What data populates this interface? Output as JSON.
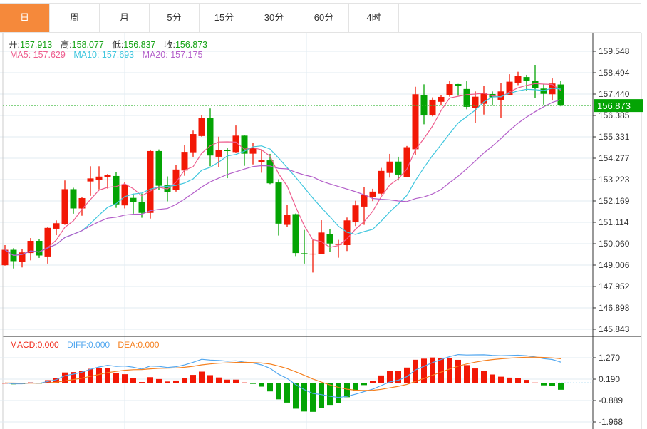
{
  "tabs": [
    "日",
    "周",
    "月",
    "5分",
    "15分",
    "30分",
    "60分",
    "4时"
  ],
  "active_tab": 0,
  "ohlc_header": {
    "open_label": "开:",
    "open": "157.913",
    "high_label": "高:",
    "high": "158.077",
    "low_label": "低:",
    "low": "156.837",
    "close_label": "收:",
    "close": "156.873"
  },
  "ma_header": {
    "ma5": "MA5: 157.629",
    "ma10": "MA10: 157.693",
    "ma20": "MA20: 157.175"
  },
  "macd_header": {
    "macd": "MACD:0.000",
    "diff": "DIFF:0.000",
    "dea": "DEA:0.000"
  },
  "colors": {
    "up": "#f21806",
    "down": "#04a404",
    "ma5": "#ee5d8e",
    "ma10": "#3fc6de",
    "ma20": "#b35ec9",
    "diff": "#52a7ef",
    "dea": "#f5801f",
    "accent": "#f5893b"
  },
  "chart_data": {
    "type": "candlestick",
    "price_axis_ticks": [
      "159.548",
      "158.494",
      "157.440",
      "156.385",
      "155.331",
      "154.277",
      "153.223",
      "152.169",
      "151.114",
      "150.060",
      "149.006",
      "147.952",
      "146.898",
      "145.843"
    ],
    "price_range": [
      145.843,
      159.548
    ],
    "current_price": "156.873",
    "macd_axis_ticks": [
      "1.270",
      "0.190",
      "-0.889",
      "-1.968"
    ],
    "macd_range": [
      -1.968,
      1.27
    ],
    "candles": [
      [
        149.0,
        149.99,
        148.98,
        149.76
      ],
      [
        149.76,
        149.84,
        148.84,
        149.2
      ],
      [
        149.16,
        149.8,
        148.89,
        149.63
      ],
      [
        149.6,
        150.34,
        149.24,
        150.2
      ],
      [
        150.2,
        150.28,
        149.36,
        149.48
      ],
      [
        149.43,
        150.89,
        149.08,
        150.84
      ],
      [
        150.8,
        151.21,
        150.48,
        151.07
      ],
      [
        151.03,
        153.18,
        150.99,
        152.75
      ],
      [
        152.75,
        152.82,
        151.54,
        151.8
      ],
      [
        151.8,
        152.38,
        151.44,
        152.31
      ],
      [
        153.13,
        153.88,
        152.42,
        153.28
      ],
      [
        153.2,
        153.88,
        152.74,
        153.37
      ],
      [
        153.33,
        153.5,
        152.78,
        153.44
      ],
      [
        153.4,
        153.6,
        151.83,
        152.0
      ],
      [
        151.95,
        153.08,
        151.8,
        152.98
      ],
      [
        152.32,
        152.53,
        151.54,
        152.1
      ],
      [
        152.12,
        152.53,
        151.34,
        151.58
      ],
      [
        151.58,
        154.7,
        151.3,
        154.63
      ],
      [
        154.63,
        154.71,
        152.71,
        152.92
      ],
      [
        152.94,
        153.38,
        152.15,
        152.59
      ],
      [
        152.72,
        153.96,
        152.63,
        153.72
      ],
      [
        153.67,
        154.93,
        153.41,
        154.59
      ],
      [
        154.57,
        155.64,
        154.35,
        155.47
      ],
      [
        155.37,
        156.42,
        155.34,
        156.25
      ],
      [
        156.25,
        156.73,
        153.88,
        154.41
      ],
      [
        154.35,
        155.34,
        153.84,
        154.67
      ],
      [
        154.67,
        154.8,
        153.29,
        154.63
      ],
      [
        154.58,
        155.89,
        154.56,
        155.39
      ],
      [
        155.39,
        155.4,
        153.9,
        154.5
      ],
      [
        154.5,
        155.02,
        153.97,
        154.78
      ],
      [
        154.07,
        154.7,
        153.56,
        154.17
      ],
      [
        154.17,
        154.49,
        153.0,
        153.04
      ],
      [
        153.08,
        153.24,
        150.46,
        151.05
      ],
      [
        150.99,
        151.97,
        150.87,
        151.5
      ],
      [
        151.52,
        151.55,
        149.45,
        149.6
      ],
      [
        149.59,
        150.74,
        149.08,
        149.55
      ],
      [
        149.55,
        150.25,
        148.64,
        149.57
      ],
      [
        149.55,
        151.22,
        149.55,
        150.61
      ],
      [
        150.52,
        150.78,
        149.66,
        150.07
      ],
      [
        150.0,
        150.25,
        149.37,
        150.05
      ],
      [
        149.99,
        151.35,
        149.7,
        151.21
      ],
      [
        151.13,
        152.18,
        150.93,
        151.95
      ],
      [
        151.89,
        152.85,
        150.99,
        152.45
      ],
      [
        152.36,
        152.77,
        152.16,
        152.63
      ],
      [
        152.53,
        153.8,
        152.47,
        153.65
      ],
      [
        153.55,
        154.49,
        153.32,
        154.11
      ],
      [
        154.11,
        154.35,
        153.18,
        153.47
      ],
      [
        153.35,
        154.88,
        153.33,
        154.82
      ],
      [
        154.72,
        157.8,
        154.44,
        157.43
      ],
      [
        157.39,
        157.92,
        155.95,
        156.42
      ],
      [
        156.4,
        157.28,
        156.34,
        157.16
      ],
      [
        157.06,
        157.39,
        156.87,
        157.3
      ],
      [
        157.37,
        158.1,
        157.31,
        157.93
      ],
      [
        157.93,
        157.94,
        157.36,
        157.84
      ],
      [
        157.69,
        158.07,
        156.69,
        156.81
      ],
      [
        156.77,
        157.57,
        156.02,
        157.31
      ],
      [
        156.96,
        157.86,
        156.43,
        157.51
      ],
      [
        157.44,
        157.57,
        156.87,
        157.28
      ],
      [
        157.16,
        157.98,
        156.25,
        157.57
      ],
      [
        157.39,
        158.42,
        157.37,
        158.05
      ],
      [
        158.0,
        158.54,
        157.88,
        158.34
      ],
      [
        158.28,
        158.39,
        157.59,
        158.1
      ],
      [
        158.1,
        158.88,
        157.24,
        157.72
      ],
      [
        157.71,
        157.92,
        156.92,
        157.45
      ],
      [
        157.43,
        158.21,
        157.12,
        157.96
      ],
      [
        157.913,
        158.077,
        156.837,
        156.873
      ]
    ],
    "ma_periods": [
      5,
      10,
      20
    ]
  }
}
